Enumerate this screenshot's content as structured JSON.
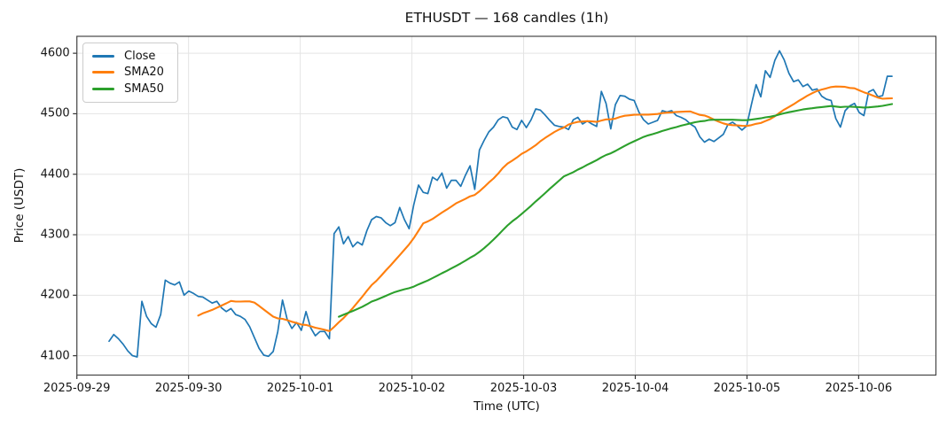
{
  "figure": {
    "title": "ETHUSDT — 168 candles (1h)",
    "xlabel": "Time (UTC)",
    "ylabel": "Price (USDT)"
  },
  "legend": {
    "items": [
      {
        "label": "Close",
        "color": "#1f77b4"
      },
      {
        "label": "SMA20",
        "color": "#ff7f0e"
      },
      {
        "label": "SMA50",
        "color": "#2ca02c"
      }
    ]
  },
  "axes": {
    "x": {
      "ticks": [
        {
          "hour": 0,
          "label": "2025-09-29"
        },
        {
          "hour": 24,
          "label": "2025-09-30"
        },
        {
          "hour": 48,
          "label": "2025-10-01"
        },
        {
          "hour": 72,
          "label": "2025-10-02"
        },
        {
          "hour": 96,
          "label": "2025-10-03"
        },
        {
          "hour": 120,
          "label": "2025-10-04"
        },
        {
          "hour": 144,
          "label": "2025-10-05"
        },
        {
          "hour": 168,
          "label": "2025-10-06"
        }
      ]
    },
    "y": {
      "ticks": [
        {
          "value": 4100,
          "label": "4100"
        },
        {
          "value": 4200,
          "label": "4200"
        },
        {
          "value": 4300,
          "label": "4300"
        },
        {
          "value": 4400,
          "label": "4400"
        },
        {
          "value": 4500,
          "label": "4500"
        },
        {
          "value": 4600,
          "label": "4600"
        }
      ]
    }
  },
  "chart_data": {
    "type": "line",
    "title": "ETHUSDT — 168 candles (1h)",
    "xlabel": "Time (UTC)",
    "ylabel": "Price (USDT)",
    "symbol": "ETHUSDT",
    "interval": "1h",
    "candle_count": 168,
    "x_start_date": "2025-09-29",
    "x_end_date": "2025-10-06",
    "x_first_candle_hour": 7,
    "x_step_hours": 1,
    "ylim": [
      4068,
      4628
    ],
    "xlim_hours": [
      0,
      184.6
    ],
    "grid": true,
    "legend_position": "upper left",
    "series": [
      {
        "name": "Close",
        "color": "#1f77b4",
        "values": [
          4124,
          4135,
          4128,
          4119,
          4108,
          4100,
          4098,
          4190,
          4165,
          4153,
          4147,
          4168,
          4225,
          4220,
          4217,
          4222,
          4200,
          4207,
          4203,
          4198,
          4197,
          4192,
          4187,
          4190,
          4179,
          4173,
          4178,
          4168,
          4165,
          4160,
          4148,
          4130,
          4112,
          4101,
          4099,
          4107,
          4140,
          4192,
          4160,
          4145,
          4155,
          4142,
          4173,
          4146,
          4133,
          4140,
          4140,
          4128,
          4302,
          4313,
          4285,
          4297,
          4280,
          4288,
          4283,
          4307,
          4325,
          4330,
          4328,
          4320,
          4315,
          4320,
          4345,
          4325,
          4310,
          4350,
          4382,
          4370,
          4368,
          4395,
          4390,
          4402,
          4377,
          4390,
          4390,
          4380,
          4398,
          4414,
          4375,
          4440,
          4456,
          4470,
          4478,
          4490,
          4495,
          4493,
          4478,
          4474,
          4489,
          4477,
          4490,
          4508,
          4506,
          4498,
          4489,
          4481,
          4479,
          4478,
          4474,
          4490,
          4494,
          4483,
          4488,
          4483,
          4479,
          4537,
          4517,
          4475,
          4515,
          4530,
          4529,
          4524,
          4522,
          4503,
          4490,
          4483,
          4486,
          4489,
          4505,
          4503,
          4505,
          4497,
          4494,
          4490,
          4483,
          4478,
          4462,
          4453,
          4458,
          4454,
          4460,
          4466,
          4482,
          4486,
          4480,
          4473,
          4480,
          4515,
          4548,
          4528,
          4571,
          4560,
          4588,
          4604,
          4589,
          4567,
          4553,
          4556,
          4545,
          4549,
          4539,
          4541,
          4529,
          4524,
          4522,
          4492,
          4478,
          4505,
          4513,
          4517,
          4502,
          4497,
          4536,
          4540,
          4528,
          4530,
          4562,
          4562
        ]
      },
      {
        "name": "SMA20",
        "color": "#ff7f0e",
        "derived": "sma",
        "period": 20,
        "source": "Close"
      },
      {
        "name": "SMA50",
        "color": "#2ca02c",
        "derived": "sma",
        "period": 50,
        "source": "Close"
      }
    ]
  }
}
